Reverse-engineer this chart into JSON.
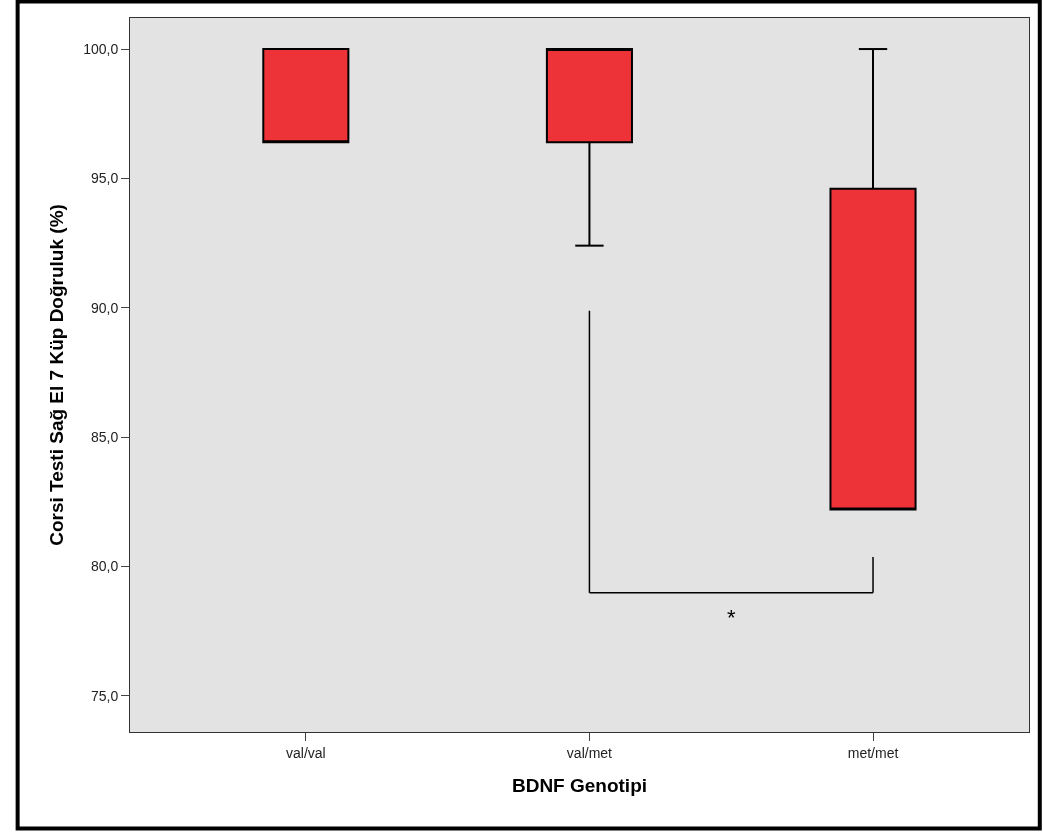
{
  "chart_data": {
    "type": "box",
    "xlabel": "BDNF Genotipi",
    "ylabel": "Corsi Testi Sağ El 7 Küp Doğruluk (%)",
    "categories": [
      "val/val",
      "val/met",
      "met/met"
    ],
    "boxes": [
      {
        "low": 96.4,
        "q1": 96.4,
        "median": 96.4,
        "q3": 100,
        "high": 100
      },
      {
        "low": 92.4,
        "q1": 96.4,
        "median": 100,
        "q3": 100,
        "high": 100
      },
      {
        "low": 82.2,
        "q1": 82.2,
        "median": 82.2,
        "q3": 94.6,
        "high": 100
      }
    ],
    "color": "#ee3338",
    "ylim": [
      73.6,
      101.2
    ],
    "yticks": [
      {
        "value": 75,
        "label": "75,0"
      },
      {
        "value": 80,
        "label": "80,0"
      },
      {
        "value": 85,
        "label": "85,0"
      },
      {
        "value": 90,
        "label": "90,0"
      },
      {
        "value": 95,
        "label": "95,0"
      },
      {
        "value": 100,
        "label": "100,0"
      }
    ],
    "annotations": [
      "*"
    ],
    "grid": false
  }
}
